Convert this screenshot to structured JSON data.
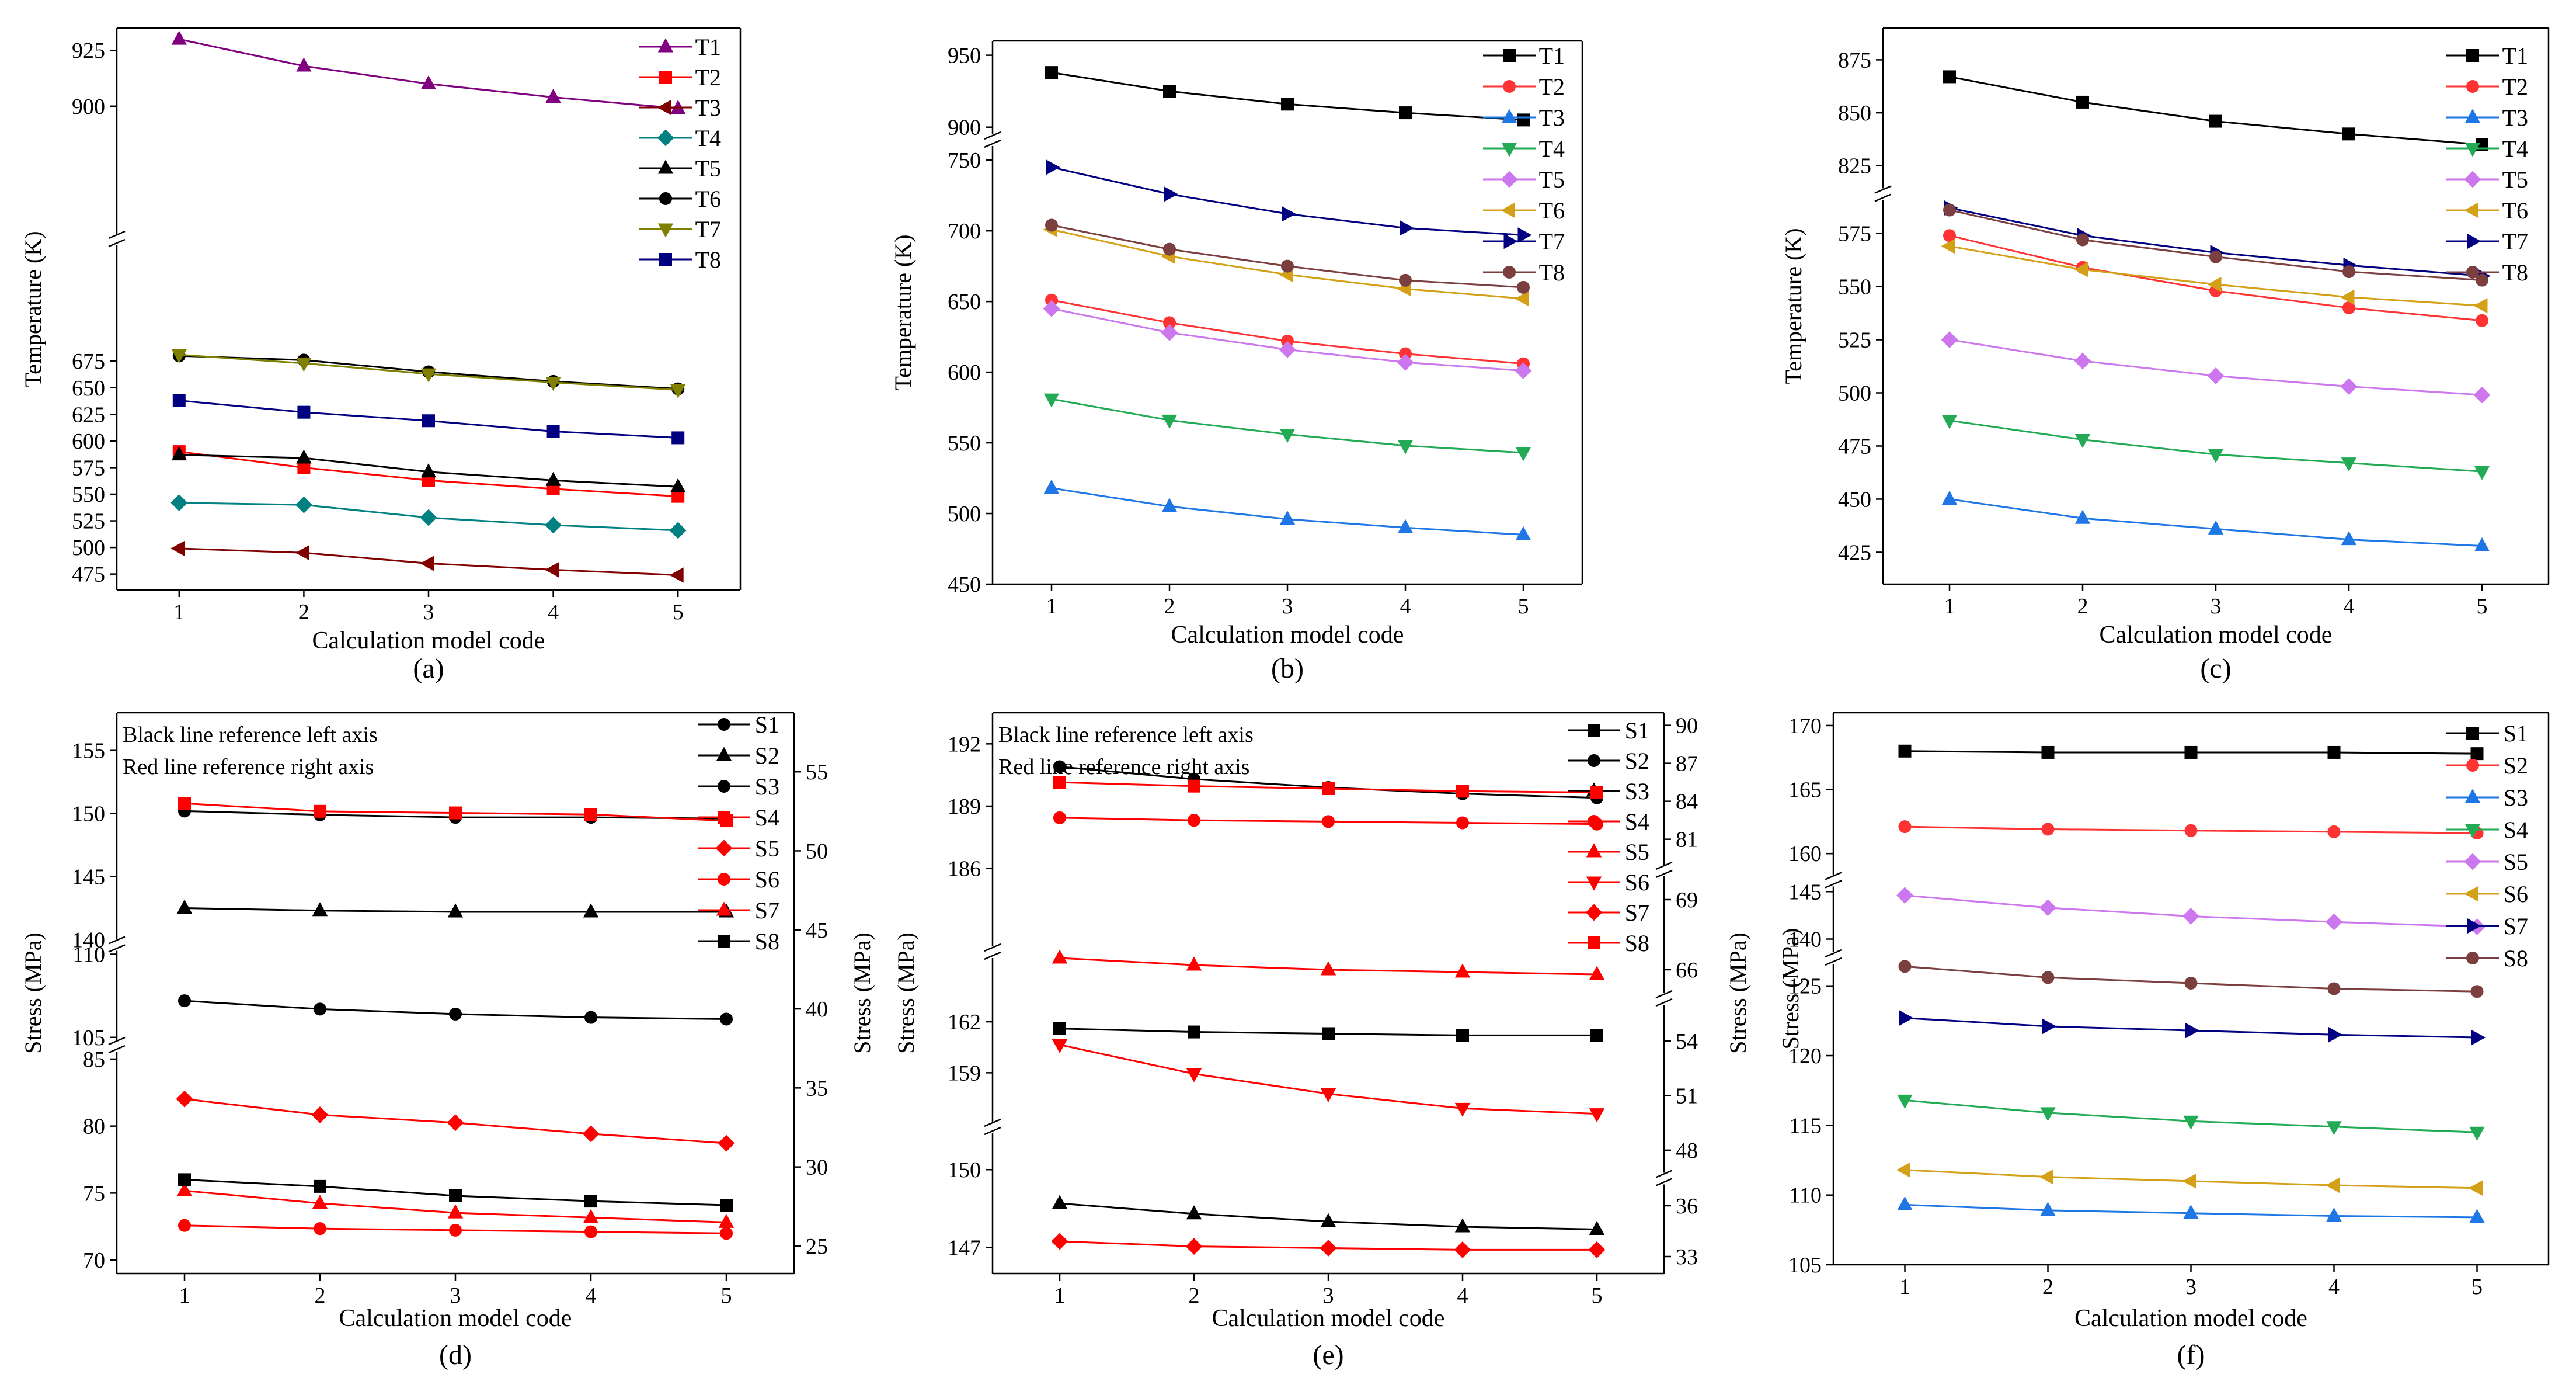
{
  "figure": {
    "description_labels": [
      "(a)",
      "(b)",
      "(c)",
      "(d)",
      "(e)",
      "(f)"
    ]
  },
  "chart_data": [
    {
      "id": "a",
      "type": "line",
      "caption": "(a)",
      "xlabel": "Calculation model code",
      "ylabel": "Temperature (K)",
      "x": [
        1,
        2,
        3,
        4,
        5
      ],
      "xlim": [
        0.5,
        5.5
      ],
      "segments": [
        {
          "range": [
            460,
            685
          ],
          "ticks": [
            475,
            500,
            525,
            550,
            575,
            600,
            625,
            650,
            675
          ]
        },
        {
          "range": [
            890,
            935
          ],
          "ticks": [
            900,
            925
          ]
        }
      ],
      "series": [
        {
          "name": "T1",
          "color": "#800080",
          "marker": "triangle",
          "values": [
            930,
            918,
            910,
            904,
            899
          ]
        },
        {
          "name": "T2",
          "color": "#ff0000",
          "marker": "square",
          "values": [
            590,
            575,
            563,
            555,
            548
          ]
        },
        {
          "name": "T3",
          "color": "#800000",
          "marker": "triangle-left",
          "values": [
            499,
            495,
            485,
            479,
            474
          ]
        },
        {
          "name": "T4",
          "color": "#008080",
          "marker": "diamond",
          "values": [
            542,
            540,
            528,
            521,
            516
          ]
        },
        {
          "name": "T5",
          "color": "#000000",
          "marker": "triangle",
          "values": [
            587,
            584,
            571,
            563,
            557
          ]
        },
        {
          "name": "T6",
          "color": "#000000",
          "marker": "circle",
          "values": [
            680,
            676,
            665,
            656,
            649
          ]
        },
        {
          "name": "T7",
          "color": "#808000",
          "marker": "triangle-down",
          "values": [
            681,
            673,
            663,
            655,
            648
          ]
        },
        {
          "name": "T8",
          "color": "#000080",
          "marker": "square",
          "values": [
            638,
            627,
            619,
            609,
            603
          ]
        }
      ]
    },
    {
      "id": "b",
      "type": "line",
      "caption": "(b)",
      "xlabel": "Calculation model code",
      "ylabel": "Temperature (K)",
      "x": [
        1,
        2,
        3,
        4,
        5
      ],
      "xlim": [
        0.5,
        5.5
      ],
      "segments": [
        {
          "range": [
            450,
            760
          ],
          "ticks": [
            450,
            500,
            550,
            600,
            650,
            700,
            750
          ]
        },
        {
          "range": [
            895,
            960
          ],
          "ticks": [
            900,
            950
          ]
        }
      ],
      "series": [
        {
          "name": "T1",
          "color": "#000000",
          "marker": "square",
          "values": [
            938,
            925,
            916,
            910,
            905
          ]
        },
        {
          "name": "T2",
          "color": "#ff3333",
          "marker": "circle",
          "values": [
            651,
            635,
            622,
            613,
            606
          ]
        },
        {
          "name": "T3",
          "color": "#1f77e6",
          "marker": "triangle",
          "values": [
            518,
            505,
            496,
            490,
            485
          ]
        },
        {
          "name": "T4",
          "color": "#22aa55",
          "marker": "triangle-down",
          "values": [
            581,
            566,
            556,
            548,
            543
          ]
        },
        {
          "name": "T5",
          "color": "#cc77ee",
          "marker": "diamond",
          "values": [
            645,
            628,
            616,
            607,
            601
          ]
        },
        {
          "name": "T6",
          "color": "#d4a017",
          "marker": "triangle-left",
          "values": [
            701,
            682,
            669,
            659,
            652
          ]
        },
        {
          "name": "T7",
          "color": "#000080",
          "marker": "triangle-right",
          "values": [
            745,
            726,
            712,
            702,
            697
          ]
        },
        {
          "name": "T8",
          "color": "#7b3f3f",
          "marker": "circle",
          "values": [
            704,
            687,
            675,
            665,
            660
          ]
        }
      ]
    },
    {
      "id": "c",
      "type": "line",
      "caption": "(c)",
      "xlabel": "Calculation model code",
      "ylabel": "Temperature (K)",
      "x": [
        1,
        2,
        3,
        4,
        5
      ],
      "xlim": [
        0.5,
        5.5
      ],
      "segments": [
        {
          "range": [
            410,
            590
          ],
          "ticks": [
            425,
            450,
            475,
            500,
            525,
            550,
            575
          ]
        },
        {
          "range": [
            815,
            890
          ],
          "ticks": [
            825,
            850,
            875
          ]
        }
      ],
      "series": [
        {
          "name": "T1",
          "color": "#000000",
          "marker": "square",
          "values": [
            867,
            855,
            846,
            840,
            835
          ]
        },
        {
          "name": "T2",
          "color": "#ff3333",
          "marker": "circle",
          "values": [
            574,
            559,
            548,
            540,
            534
          ]
        },
        {
          "name": "T3",
          "color": "#1f77e6",
          "marker": "triangle",
          "values": [
            450,
            441,
            436,
            431,
            428
          ]
        },
        {
          "name": "T4",
          "color": "#22aa55",
          "marker": "triangle-down",
          "values": [
            487,
            478,
            471,
            467,
            463
          ]
        },
        {
          "name": "T5",
          "color": "#cc77ee",
          "marker": "diamond",
          "values": [
            525,
            515,
            508,
            503,
            499
          ]
        },
        {
          "name": "T6",
          "color": "#d4a017",
          "marker": "triangle-left",
          "values": [
            569,
            558,
            551,
            545,
            541
          ]
        },
        {
          "name": "T7",
          "color": "#000080",
          "marker": "triangle-right",
          "values": [
            587,
            574,
            566,
            560,
            555
          ]
        },
        {
          "name": "T8",
          "color": "#7b3f3f",
          "marker": "circle",
          "values": [
            586,
            572,
            564,
            557,
            553
          ]
        }
      ]
    },
    {
      "id": "d",
      "type": "line",
      "caption": "(d)",
      "xlabel": "Calculation model code",
      "ylabel": "Stress (MPa)",
      "ylabel_right": "Stress (MPa)",
      "annotations": [
        "Black line reference left axis",
        "Red line reference right axis"
      ],
      "x": [
        1,
        2,
        3,
        4,
        5
      ],
      "xlim": [
        0.5,
        5.5
      ],
      "segments": [
        {
          "range": [
            69,
            86
          ],
          "ticks": [
            70,
            75,
            80,
            85
          ]
        },
        {
          "range": [
            104.5,
            111
          ],
          "ticks": [
            105,
            110
          ]
        },
        {
          "range": [
            139,
            158
          ],
          "ticks": [
            140,
            145,
            150,
            155
          ]
        }
      ],
      "right_axis": {
        "range": [
          24,
          58
        ],
        "ticks": [
          25,
          30,
          35,
          40,
          45,
          50,
          55
        ]
      },
      "series": [
        {
          "name": "S1",
          "color": "#000000",
          "marker": "circle",
          "axis": "left",
          "values": [
            150.2,
            149.9,
            149.7,
            149.7,
            149.6
          ]
        },
        {
          "name": "S2",
          "color": "#000000",
          "marker": "triangle",
          "axis": "left",
          "values": [
            142.5,
            142.3,
            142.2,
            142.2,
            142.2
          ]
        },
        {
          "name": "S3",
          "color": "#000000",
          "marker": "circle",
          "axis": "left",
          "values": [
            107.2,
            106.7,
            106.4,
            106.2,
            106.1
          ]
        },
        {
          "name": "S4",
          "color": "#ff0000",
          "marker": "square",
          "axis": "right",
          "values": [
            53.0,
            52.5,
            52.4,
            52.3,
            51.9
          ]
        },
        {
          "name": "S5",
          "color": "#ff0000",
          "marker": "diamond",
          "axis": "right",
          "values": [
            34.3,
            33.3,
            32.8,
            32.1,
            31.5
          ]
        },
        {
          "name": "S6",
          "color": "#ff0000",
          "marker": "circle",
          "axis": "right",
          "values": [
            26.3,
            26.1,
            26.0,
            25.9,
            25.8
          ]
        },
        {
          "name": "S7",
          "color": "#ff0000",
          "marker": "triangle",
          "axis": "right",
          "values": [
            28.5,
            27.7,
            27.1,
            26.8,
            26.5
          ]
        },
        {
          "name": "S8",
          "color": "#000000",
          "marker": "square",
          "axis": "left",
          "values": [
            76.0,
            75.5,
            74.8,
            74.4,
            74.1
          ]
        }
      ]
    },
    {
      "id": "e",
      "type": "line",
      "caption": "(e)",
      "xlabel": "Calculation model code",
      "ylabel": "Stress (MPa)",
      "ylabel_right": "Stress (MPa)",
      "annotations": [
        "Black line reference left axis",
        "Red line reference right axis"
      ],
      "x": [
        1,
        2,
        3,
        4,
        5
      ],
      "xlim": [
        0.5,
        5.5
      ],
      "segments": [
        {
          "range": [
            146,
            150.5
          ],
          "ticks": [
            147,
            150
          ]
        },
        {
          "range": [
            157.5,
            163
          ],
          "ticks": [
            159,
            162
          ]
        },
        {
          "range": [
            184.5,
            193.5
          ],
          "ticks": [
            186,
            189,
            192
          ]
        }
      ],
      "right_axis_segments": [
        {
          "range": [
            32,
            37
          ],
          "ticks": [
            33,
            36
          ]
        },
        {
          "range": [
            47,
            56
          ],
          "ticks": [
            48,
            51,
            54
          ]
        },
        {
          "range": [
            65,
            70
          ],
          "ticks": [
            66,
            69
          ]
        },
        {
          "range": [
            79,
            91
          ],
          "ticks": [
            81,
            84,
            87,
            90
          ]
        }
      ],
      "series": [
        {
          "name": "S1",
          "color": "#000000",
          "marker": "square",
          "axis": "left",
          "values": [
            161.6,
            161.4,
            161.3,
            161.2,
            161.2
          ]
        },
        {
          "name": "S2",
          "color": "#000000",
          "marker": "circle",
          "axis": "left",
          "values": [
            190.9,
            190.3,
            189.9,
            189.6,
            189.4
          ]
        },
        {
          "name": "S3",
          "color": "#000000",
          "marker": "triangle",
          "axis": "left",
          "values": [
            148.7,
            148.3,
            148.0,
            147.8,
            147.7
          ]
        },
        {
          "name": "S4",
          "color": "#ff0000",
          "marker": "circle",
          "axis": "right",
          "values": [
            82.7,
            82.5,
            82.4,
            82.3,
            82.2
          ]
        },
        {
          "name": "S5",
          "color": "#ff0000",
          "marker": "triangle",
          "axis": "right",
          "values": [
            66.5,
            66.2,
            66.0,
            65.9,
            65.8
          ]
        },
        {
          "name": "S6",
          "color": "#ff0000",
          "marker": "triangle-down",
          "axis": "right",
          "values": [
            53.8,
            52.2,
            51.1,
            50.3,
            50.0
          ]
        },
        {
          "name": "S7",
          "color": "#ff0000",
          "marker": "diamond",
          "axis": "right",
          "values": [
            33.9,
            33.6,
            33.5,
            33.4,
            33.4
          ]
        },
        {
          "name": "S8",
          "color": "#ff0000",
          "marker": "square",
          "axis": "right",
          "values": [
            85.5,
            85.2,
            85.0,
            84.8,
            84.7
          ]
        }
      ]
    },
    {
      "id": "f",
      "type": "line",
      "caption": "(f)",
      "xlabel": "Calculation model code",
      "ylabel": "Stress (MPa)",
      "x": [
        1,
        2,
        3,
        4,
        5
      ],
      "xlim": [
        0.5,
        5.5
      ],
      "segments": [
        {
          "range": [
            105,
            127
          ],
          "ticks": [
            105,
            110,
            115,
            120,
            125
          ]
        },
        {
          "range": [
            138,
            146
          ],
          "ticks": [
            140,
            145
          ]
        },
        {
          "range": [
            158,
            171
          ],
          "ticks": [
            160,
            165,
            170
          ]
        }
      ],
      "series": [
        {
          "name": "S1",
          "color": "#000000",
          "marker": "square",
          "values": [
            168.0,
            167.9,
            167.9,
            167.9,
            167.8
          ]
        },
        {
          "name": "S2",
          "color": "#ff3333",
          "marker": "circle",
          "values": [
            162.1,
            161.9,
            161.8,
            161.7,
            161.6
          ]
        },
        {
          "name": "S3",
          "color": "#1f77e6",
          "marker": "triangle",
          "values": [
            109.3,
            108.9,
            108.7,
            108.5,
            108.4
          ]
        },
        {
          "name": "S4",
          "color": "#22aa55",
          "marker": "triangle-down",
          "values": [
            116.8,
            115.9,
            115.3,
            114.9,
            114.5
          ]
        },
        {
          "name": "S5",
          "color": "#cc77ee",
          "marker": "diamond",
          "values": [
            144.6,
            143.3,
            142.4,
            141.8,
            141.3
          ]
        },
        {
          "name": "S6",
          "color": "#d4a017",
          "marker": "triangle-left",
          "values": [
            111.8,
            111.3,
            111.0,
            110.7,
            110.5
          ]
        },
        {
          "name": "S7",
          "color": "#000080",
          "marker": "triangle-right",
          "values": [
            122.7,
            122.1,
            121.8,
            121.5,
            121.3
          ]
        },
        {
          "name": "S8",
          "color": "#7b3f3f",
          "marker": "circle",
          "values": [
            126.4,
            125.6,
            125.2,
            124.8,
            124.6
          ]
        }
      ]
    }
  ]
}
